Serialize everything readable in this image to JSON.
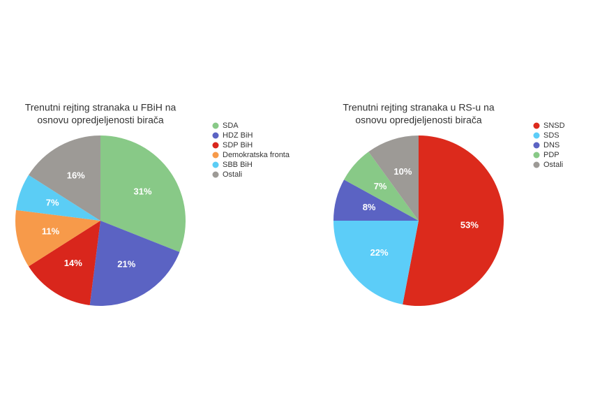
{
  "chart_data": [
    {
      "type": "pie",
      "title": [
        "Trenutni rejting stranaka u FBiH na",
        "osnovu opredjeljenosti birača"
      ],
      "categories": [
        "SDA",
        "HDZ BiH",
        "SDP BiH",
        "Demokratska fronta",
        "SBB BiH",
        "Ostali"
      ],
      "values": [
        31,
        21,
        14,
        11,
        7,
        16
      ],
      "value_labels": [
        "31%",
        "21%",
        "14%",
        "11%",
        "7%",
        "16%"
      ],
      "colors": [
        "#88c987",
        "#5b63c3",
        "#d9261c",
        "#f79a4a",
        "#5bcdf5",
        "#9d9a96"
      ],
      "legend": "right"
    },
    {
      "type": "pie",
      "title": [
        "Trenutni rejting stranaka u RS-u na",
        "osnovu opredjeljenosti birača"
      ],
      "categories": [
        "SNSD",
        "SDS",
        "DNS",
        "PDP",
        "Ostali"
      ],
      "values": [
        53,
        22,
        8,
        7,
        10
      ],
      "value_labels": [
        "53%",
        "22%",
        "8%",
        "7%",
        "10%"
      ],
      "colors": [
        "#dc2a1c",
        "#5ccdf8",
        "#5b63c3",
        "#88c987",
        "#9d9a96"
      ],
      "legend": "right"
    }
  ]
}
